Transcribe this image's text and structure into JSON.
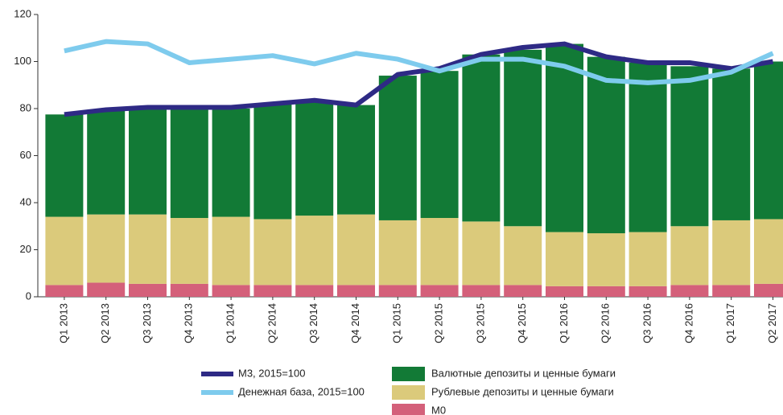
{
  "chart_data": {
    "type": "bar",
    "stacked": true,
    "categories": [
      "Q1 2013",
      "Q2 2013",
      "Q3 2013",
      "Q4 2013",
      "Q1 2014",
      "Q2 2014",
      "Q3 2014",
      "Q4 2014",
      "Q1 2015",
      "Q2 2015",
      "Q3 2015",
      "Q4 2015",
      "Q1 2016",
      "Q2 2016",
      "Q3 2016",
      "Q4 2016",
      "Q1 2017",
      "Q2 2017"
    ],
    "series": [
      {
        "name": "M0",
        "type": "bar",
        "color": "#d4607a",
        "values": [
          5,
          6,
          5.5,
          5.5,
          5,
          5,
          5,
          5,
          5,
          5,
          5,
          5,
          4.5,
          4.5,
          4.5,
          5,
          5,
          5.5
        ]
      },
      {
        "name": "Рублевые депозиты и ценные бумаги",
        "type": "bar",
        "color": "#dbca7b",
        "values": [
          29,
          29,
          29.5,
          28,
          29,
          28,
          29.5,
          30,
          27.5,
          28.5,
          27,
          25,
          23,
          22.5,
          23,
          25,
          27.5,
          27.5
        ]
      },
      {
        "name": "Валютные депозиты и ценные бумаги",
        "type": "bar",
        "color": "#127a36",
        "values": [
          43.5,
          44.5,
          45,
          46.5,
          46,
          49,
          48.5,
          46.5,
          61.5,
          62.5,
          71,
          75,
          80,
          75,
          72,
          68,
          64.5,
          67
        ]
      },
      {
        "name": "М3, 2015=100",
        "type": "line",
        "color": "#2e2a85",
        "values": [
          77.5,
          79.5,
          80.5,
          80.5,
          80.5,
          82,
          83.5,
          81.5,
          94.5,
          97,
          103,
          106,
          107.5,
          102,
          99.5,
          99.5,
          97,
          100
        ]
      },
      {
        "name": "Денежная база, 2015=100",
        "type": "line",
        "color": "#7ecbed",
        "values": [
          104.5,
          108.5,
          107.5,
          99.5,
          101,
          102.5,
          99,
          103.5,
          101,
          96,
          101,
          101,
          98,
          92,
          91,
          92,
          95.5,
          103.5
        ]
      }
    ],
    "ylim": [
      0,
      120
    ],
    "yticks": [
      0,
      20,
      40,
      60,
      80,
      100,
      120
    ]
  }
}
